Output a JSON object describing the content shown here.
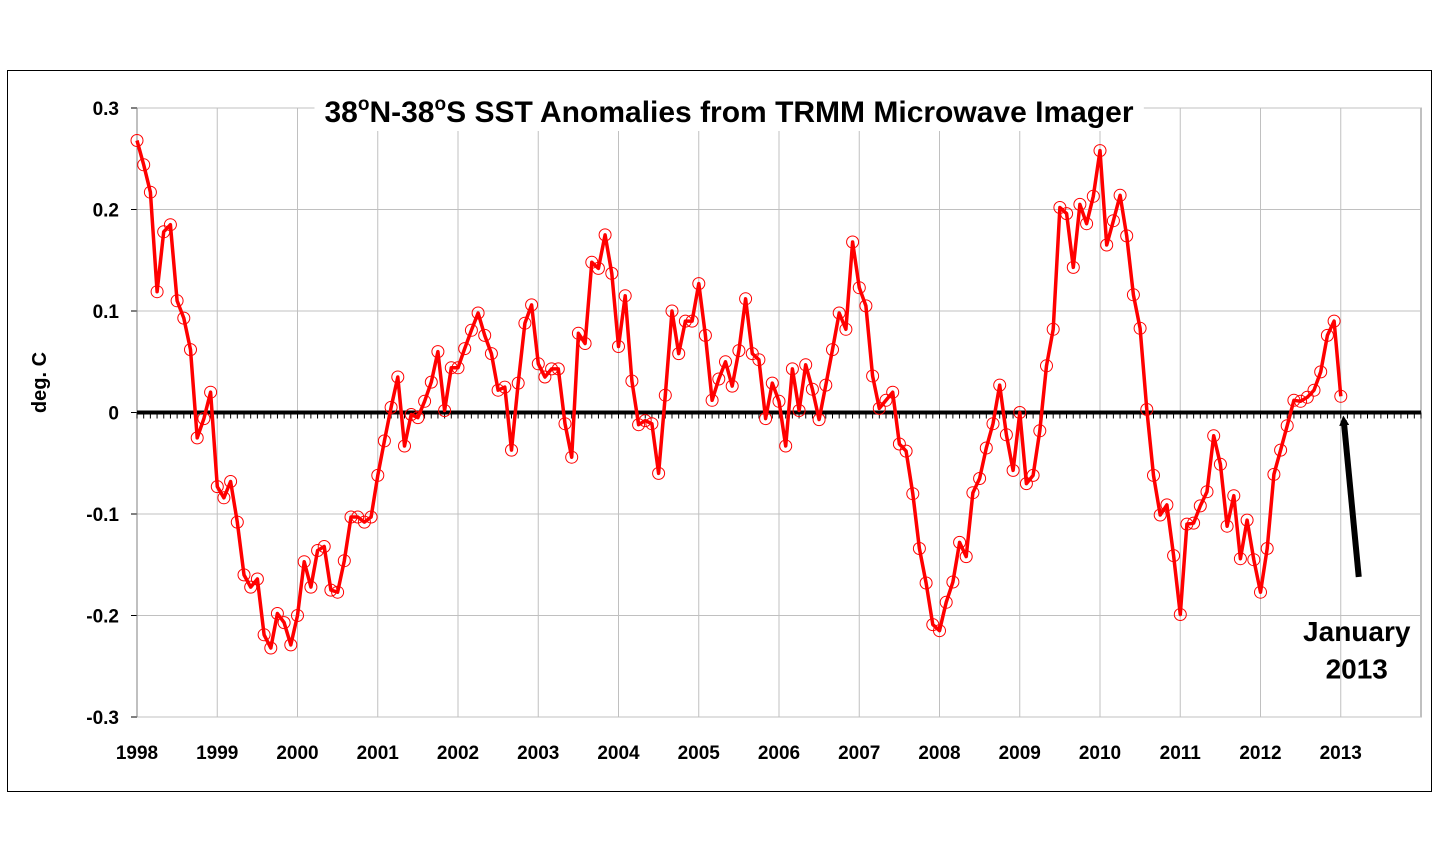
{
  "chart_data": {
    "type": "line",
    "title_parts": [
      "38",
      "o",
      "N-38",
      "o",
      "S SST Anomalies from TRMM Microwave Imager"
    ],
    "ylabel": "deg. C",
    "xlabel": "",
    "ylim": [
      -0.3,
      0.3
    ],
    "yticks": [
      "0.3",
      "0.2",
      "0.1",
      "0",
      "-0.1",
      "-0.2",
      "-0.3"
    ],
    "ytick_values": [
      0.3,
      0.2,
      0.1,
      0,
      -0.1,
      -0.2,
      -0.3
    ],
    "xtick_labels": [
      "1998",
      "1999",
      "2000",
      "2001",
      "2002",
      "2003",
      "2004",
      "2005",
      "2006",
      "2007",
      "2008",
      "2009",
      "2010",
      "2011",
      "2012",
      "2013"
    ],
    "xlim": [
      1998.0,
      2014.0
    ],
    "grid": true,
    "line_color": "#ff0000",
    "zero_line_color": "#000000",
    "series": [
      {
        "values": [
          0.268,
          0.244,
          0.217,
          0.119,
          0.178,
          0.185,
          0.11,
          0.093,
          0.062,
          -0.025,
          -0.006,
          0.02,
          -0.073,
          -0.084,
          -0.068,
          -0.108,
          -0.16,
          -0.172,
          -0.164,
          -0.219,
          -0.232,
          -0.198,
          -0.207,
          -0.229,
          -0.2,
          -0.147,
          -0.172,
          -0.136,
          -0.132,
          -0.175,
          -0.177,
          -0.146,
          -0.103,
          -0.103,
          -0.108,
          -0.103,
          -0.062,
          -0.028,
          0.005,
          0.035,
          -0.033,
          -0.002,
          -0.005,
          0.011,
          0.03,
          0.06,
          0.002,
          0.044,
          0.044,
          0.063,
          0.081,
          0.098,
          0.076,
          0.058,
          0.022,
          0.025,
          -0.037,
          0.029,
          0.088,
          0.106,
          0.048,
          0.035,
          0.043,
          0.043,
          -0.011,
          -0.044,
          0.078,
          0.068,
          0.148,
          0.142,
          0.175,
          0.137,
          0.065,
          0.115,
          0.031,
          -0.012,
          -0.008,
          -0.011,
          -0.06,
          0.017,
          0.1,
          0.058,
          0.09,
          0.09,
          0.127,
          0.076,
          0.012,
          0.033,
          0.05,
          0.026,
          0.061,
          0.112,
          0.058,
          0.052,
          -0.006,
          0.029,
          0.011,
          -0.033,
          0.043,
          0.002,
          0.047,
          0.023,
          -0.007,
          0.027,
          0.062,
          0.098,
          0.082,
          0.168,
          0.123,
          0.105,
          0.036,
          0.004,
          0.012,
          0.02,
          -0.031,
          -0.038,
          -0.08,
          -0.134,
          -0.168,
          -0.209,
          -0.215,
          -0.187,
          -0.167,
          -0.128,
          -0.142,
          -0.079,
          -0.065,
          -0.035,
          -0.011,
          0.027,
          -0.022,
          -0.057,
          0.0,
          -0.07,
          -0.062,
          -0.018,
          0.046,
          0.082,
          0.202,
          0.196,
          0.143,
          0.205,
          0.186,
          0.213,
          0.258,
          0.165,
          0.189,
          0.214,
          0.174,
          0.116,
          0.083,
          0.003,
          -0.062,
          -0.101,
          -0.091,
          -0.141,
          -0.199,
          -0.11,
          -0.109,
          -0.092,
          -0.078,
          -0.023,
          -0.051,
          -0.112,
          -0.082,
          -0.144,
          -0.106,
          -0.145,
          -0.177,
          -0.134,
          -0.061,
          -0.037,
          -0.013,
          0.012,
          0.011,
          0.015,
          0.022,
          0.04,
          0.076,
          0.09,
          0.016
        ]
      }
    ],
    "annotation": {
      "lines": [
        "January",
        "2013"
      ]
    }
  }
}
